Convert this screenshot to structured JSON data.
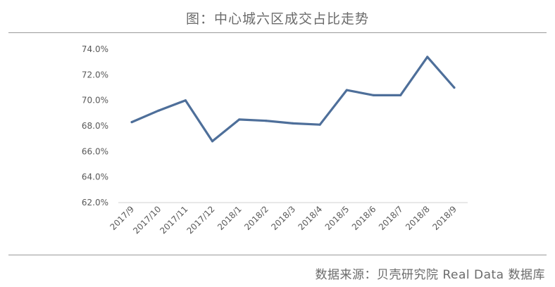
{
  "page": {
    "title": "图：中心城六区成交占比走势",
    "source": "数据来源：贝壳研究院 Real Data 数据库"
  },
  "chart_data": {
    "type": "line",
    "title": "图：中心城六区成交占比走势",
    "xlabel": "",
    "ylabel": "",
    "categories": [
      "2017/9",
      "2017/10",
      "2017/11",
      "2017/12",
      "2018/1",
      "2018/2",
      "2018/3",
      "2018/4",
      "2018/5",
      "2018/6",
      "2018/7",
      "2018/8",
      "2018/9"
    ],
    "series": [
      {
        "values": [
          68.3,
          69.2,
          70.0,
          66.8,
          68.5,
          68.4,
          68.2,
          68.1,
          70.8,
          70.4,
          70.4,
          73.4,
          71.0
        ]
      }
    ],
    "ylim": [
      62,
      74
    ],
    "yticks": [
      "62.0%",
      "64.0%",
      "66.0%",
      "68.0%",
      "70.0%",
      "72.0%",
      "74.0%"
    ],
    "grid": false,
    "colors": {
      "line": "#4e6f9a",
      "axis": "#d0d0d0",
      "text": "#595959"
    }
  }
}
